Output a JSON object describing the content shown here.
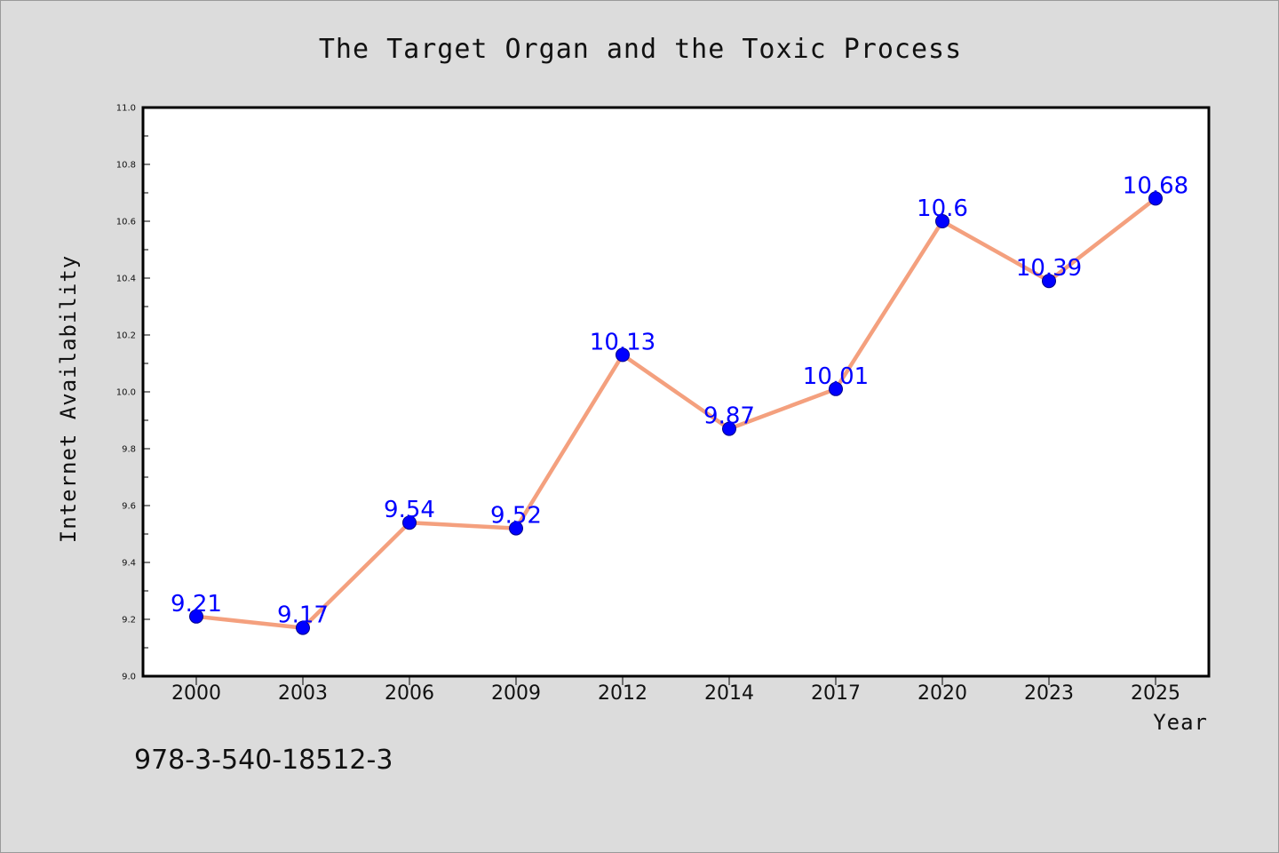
{
  "chart_data": {
    "type": "line",
    "title": "The Target Organ and the Toxic Process",
    "xlabel": "Year",
    "ylabel": "Internet Availability",
    "categories": [
      "2000",
      "2003",
      "2006",
      "2009",
      "2012",
      "2014",
      "2017",
      "2020",
      "2023",
      "2025"
    ],
    "series": [
      {
        "values": [
          9.21,
          9.17,
          9.54,
          9.52,
          10.13,
          9.87,
          10.01,
          10.6,
          10.39,
          10.68
        ],
        "data_labels": [
          "9.21",
          "9.17",
          "9.54",
          "9.52",
          "10.13",
          "9.87",
          "10.01",
          "10.6",
          "10.39",
          "10.68"
        ]
      }
    ],
    "ylim": [
      9.0,
      11.0
    ],
    "yticks": [
      "9.0",
      "9.2",
      "9.4",
      "9.6",
      "9.8",
      "10.0",
      "10.2",
      "10.4",
      "10.6",
      "10.8",
      "11.0"
    ],
    "grid": false,
    "line_color": "#f4a07e",
    "marker_color": "#0000ff",
    "label_color": "#0000ff",
    "background_color": "#dcdcdc",
    "plot_background_color": "#ffffff"
  },
  "footnote": "978-3-540-18512-3"
}
